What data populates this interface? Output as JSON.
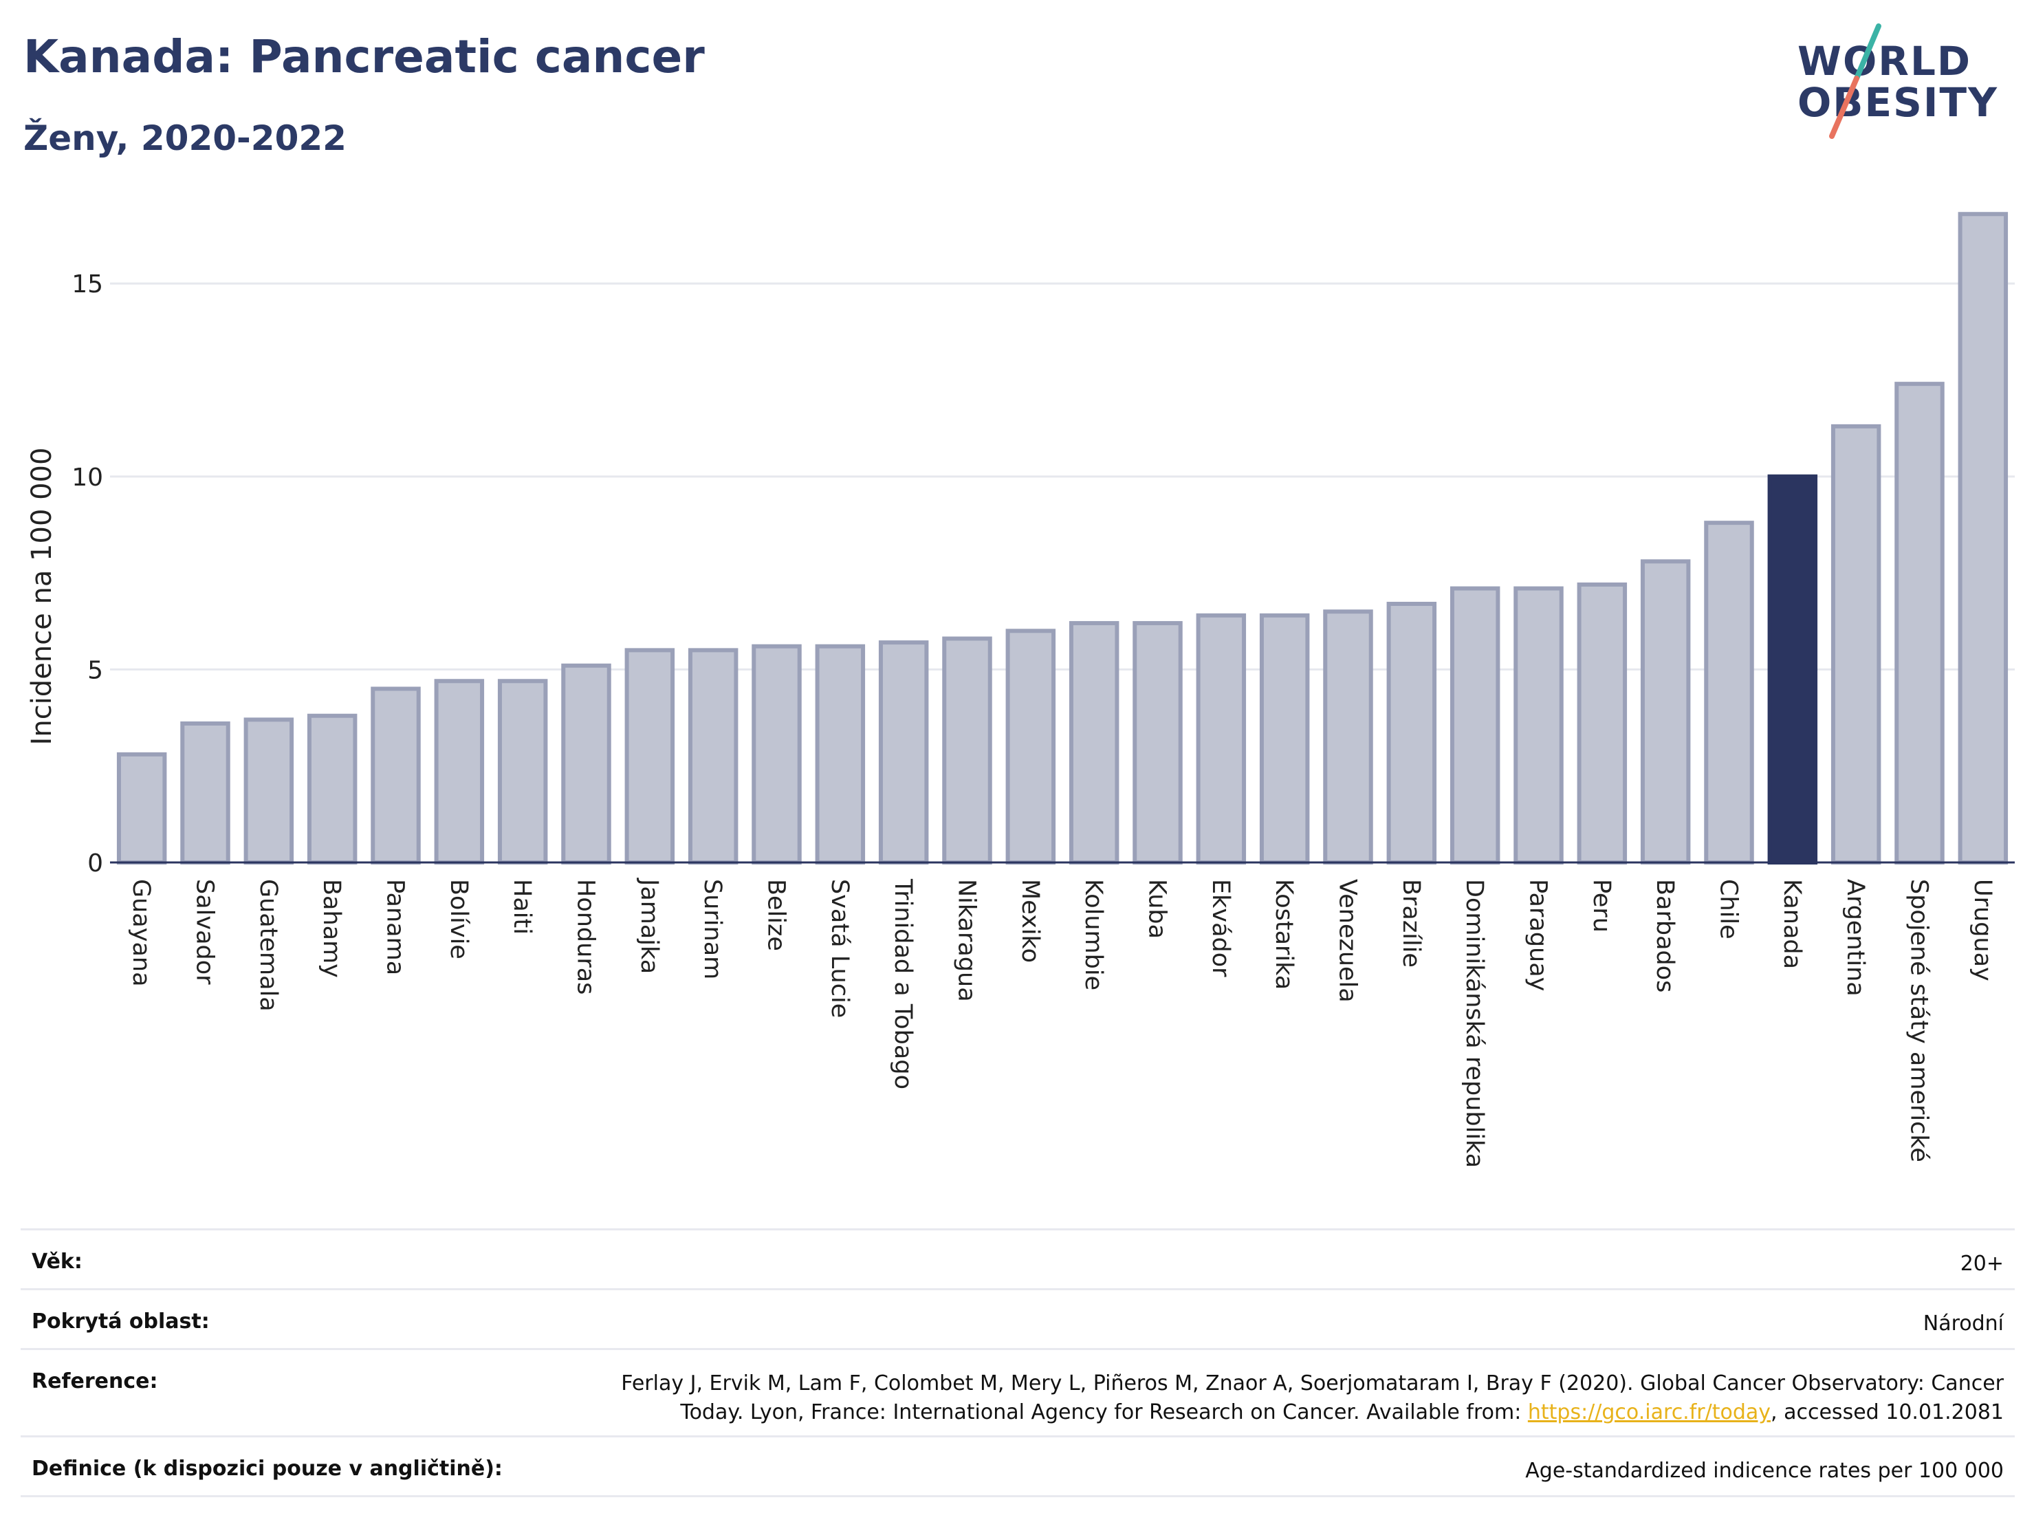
{
  "header": {
    "title": "Kanada: Pancreatic cancer",
    "subtitle": "Ženy, 2020-2022"
  },
  "logo": {
    "line1": "WORLD",
    "line2": "OBESITY",
    "colors": {
      "text": "#2c3a66",
      "slash_top": "#3bb3a6",
      "slash_bottom": "#e8735f"
    }
  },
  "chart_data": {
    "type": "bar",
    "ylabel": "Incidence na 100 000",
    "ylim": [
      0,
      17
    ],
    "yticks": [
      0,
      5,
      10,
      15
    ],
    "grid": true,
    "highlight": "Kanada",
    "colors": {
      "bar": "#c0c4d2",
      "bar_border": "#9aa0b8",
      "highlight": "#2b3560"
    },
    "categories": [
      "Guayana",
      "Salvador",
      "Guatemala",
      "Bahamy",
      "Panama",
      "Bolívie",
      "Haiti",
      "Honduras",
      "Jamajka",
      "Surinam",
      "Belize",
      "Svatá Lucie",
      "Trinidad a Tobago",
      "Nikaragua",
      "Mexiko",
      "Kolumbie",
      "Kuba",
      "Ekvádor",
      "Kostarika",
      "Venezuela",
      "Brazílie",
      "Dominikánská republika",
      "Paraguay",
      "Peru",
      "Barbados",
      "Chile",
      "Kanada",
      "Argentina",
      "Spojené státy americké",
      "Uruguay"
    ],
    "values": [
      2.8,
      3.6,
      3.7,
      3.8,
      4.5,
      4.7,
      4.7,
      5.1,
      5.5,
      5.5,
      5.6,
      5.6,
      5.7,
      5.8,
      6.0,
      6.2,
      6.2,
      6.4,
      6.4,
      6.5,
      6.7,
      7.1,
      7.1,
      7.2,
      7.8,
      8.8,
      10.0,
      11.3,
      12.4,
      16.8
    ]
  },
  "meta": {
    "age_label": "Věk:",
    "age_value": "20+",
    "area_label": "Pokrytá oblast:",
    "area_value": "Národní",
    "ref_label": "Reference:",
    "ref_line1": "Ferlay J, Ervik M, Lam F, Colombet M, Mery L, Piñeros M, Znaor A, Soerjomataram I, Bray F (2020). Global Cancer Observatory: Cancer",
    "ref_line2_pre": "Today. Lyon, France: International Agency for Research on Cancer. Available from: ",
    "ref_link": "https://gco.iarc.fr/today",
    "ref_line2_post": ", accessed 10.01.2081",
    "def_label": "Definice (k dispozici pouze v angličtině):",
    "def_value": "Age-standardized indicence rates per 100 000"
  }
}
